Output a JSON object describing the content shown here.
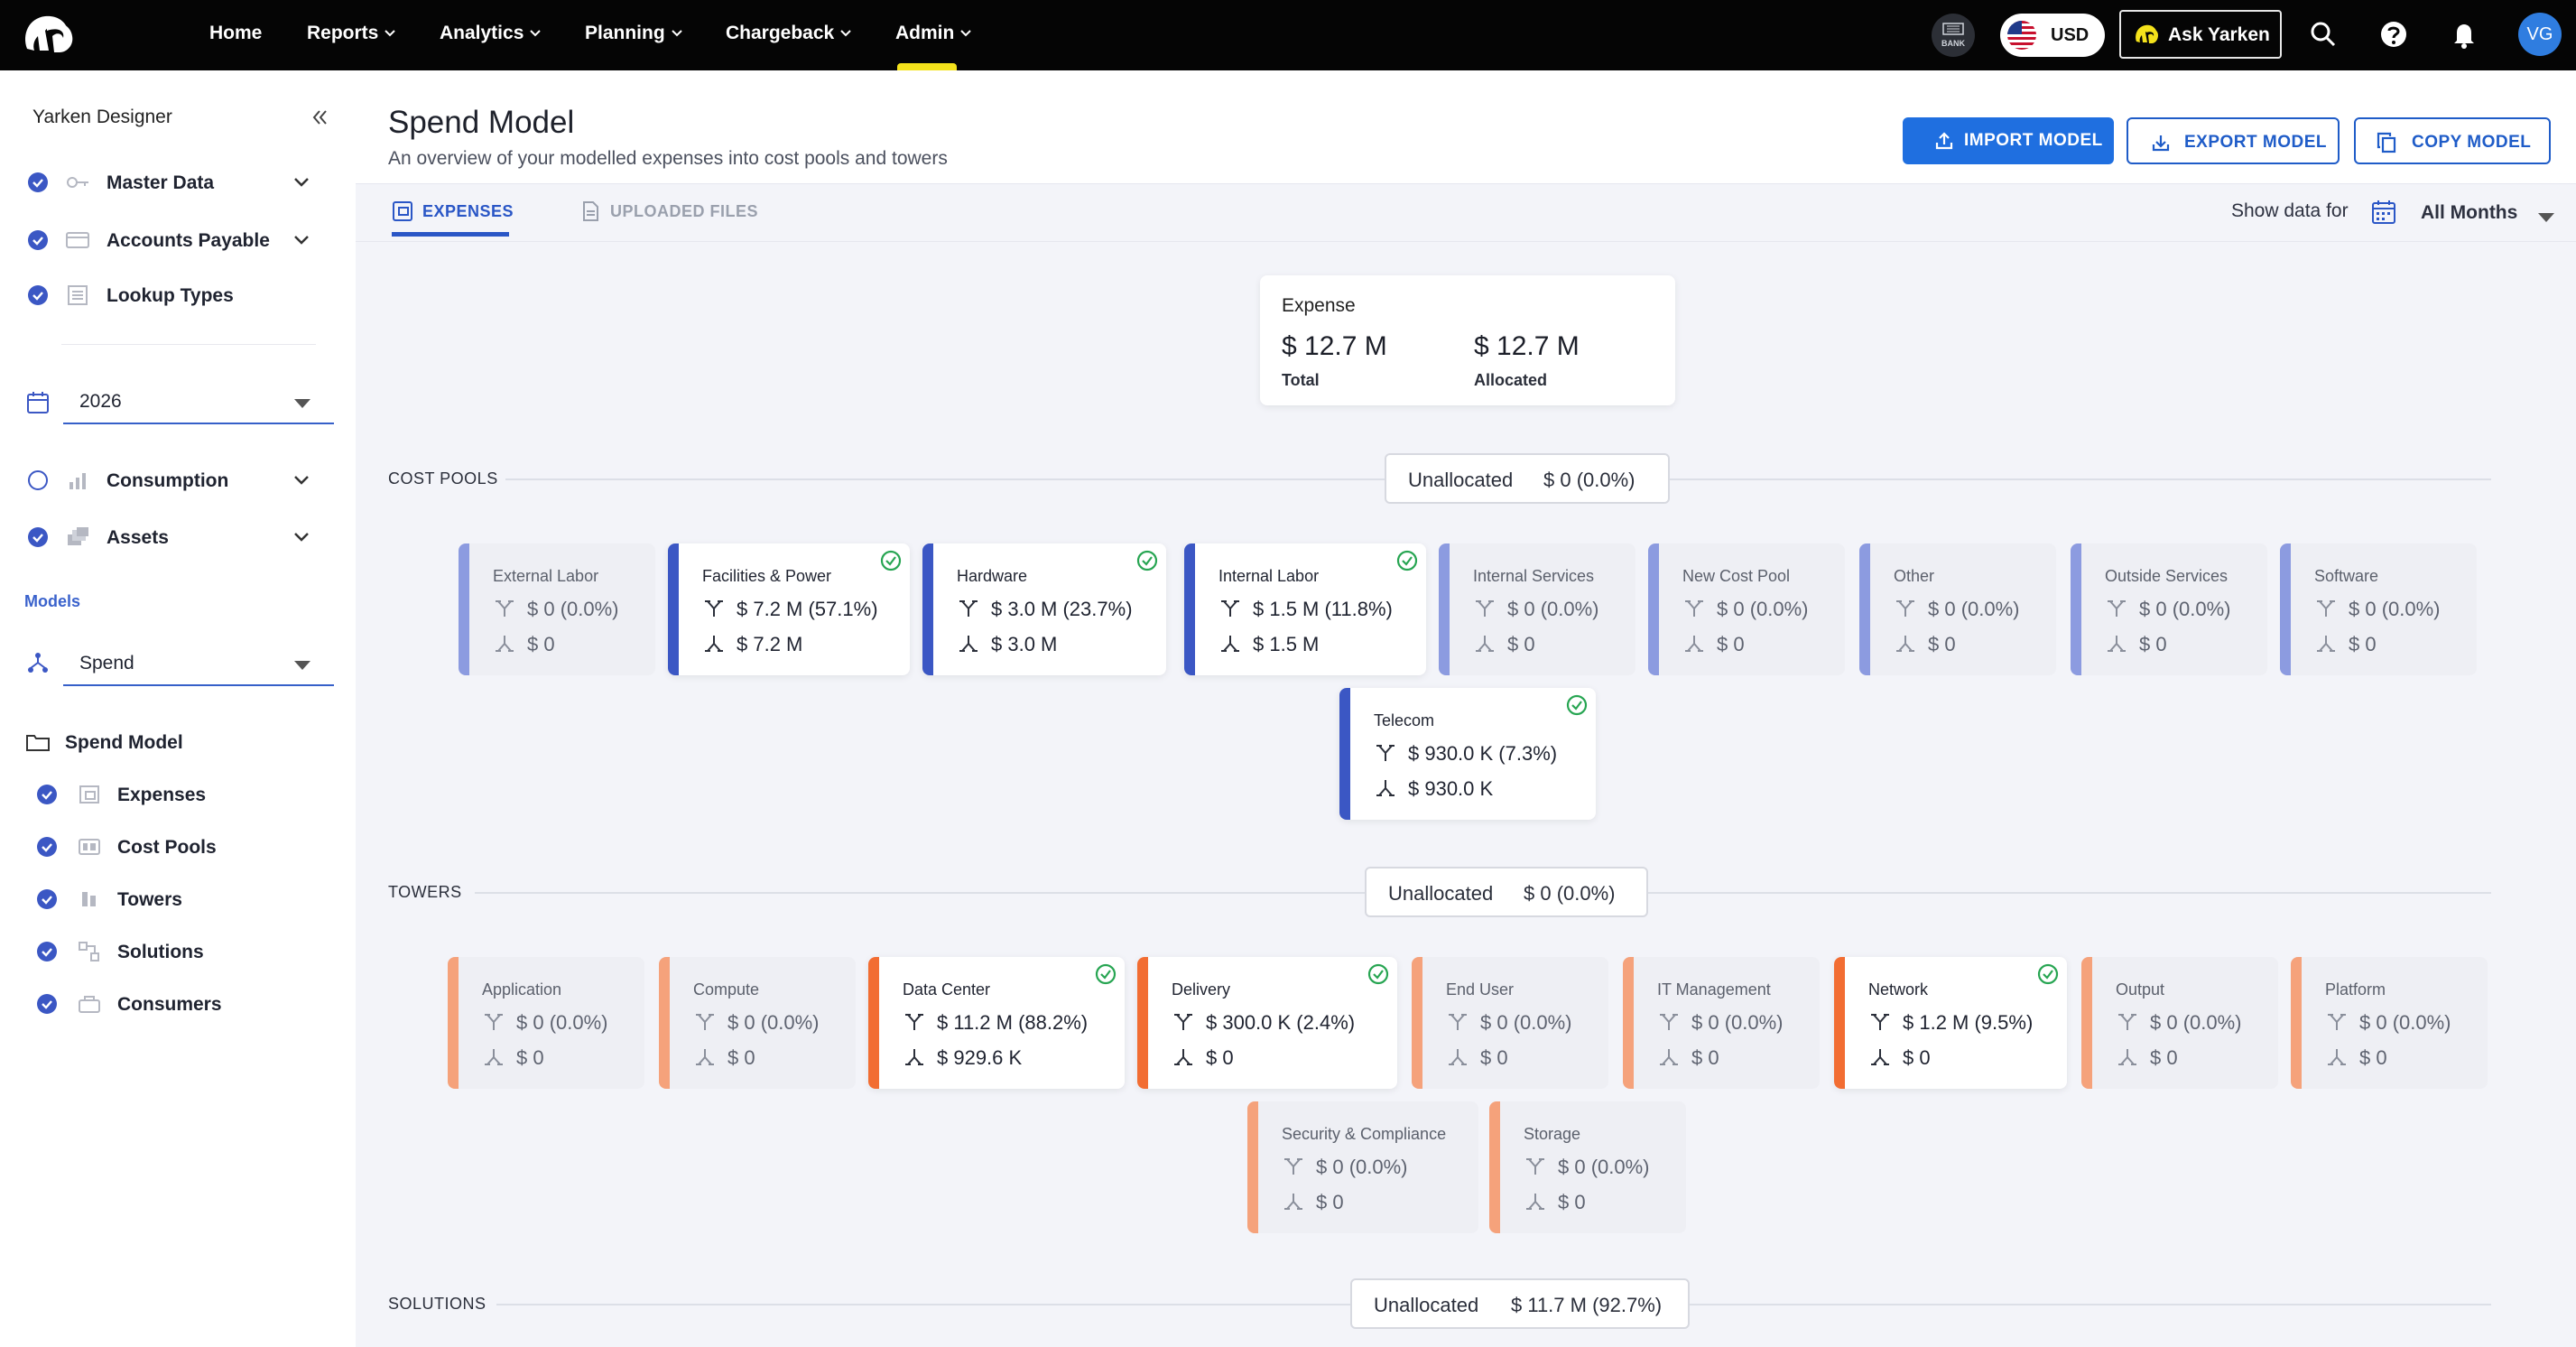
{
  "topnav": {
    "items": [
      {
        "label": "Home",
        "dropdown": false
      },
      {
        "label": "Reports",
        "dropdown": true
      },
      {
        "label": "Analytics",
        "dropdown": true
      },
      {
        "label": "Planning",
        "dropdown": true
      },
      {
        "label": "Chargeback",
        "dropdown": true
      },
      {
        "label": "Admin",
        "dropdown": true
      }
    ],
    "active": "Admin",
    "bank_label": "BANK",
    "currency": "USD",
    "ask_label": "Ask Yarken",
    "avatar_initials": "VG"
  },
  "sidebar": {
    "title": "Yarken Designer",
    "items": [
      {
        "label": "Master Data",
        "checked": true,
        "icon": "key-icon",
        "expandable": true
      },
      {
        "label": "Accounts Payable",
        "checked": true,
        "icon": "card-icon",
        "expandable": true
      },
      {
        "label": "Lookup Types",
        "checked": true,
        "icon": "list-icon",
        "expandable": false
      }
    ],
    "year": "2026",
    "items2": [
      {
        "label": "Consumption",
        "checked": false,
        "icon": "bar-chart-icon",
        "expandable": true
      },
      {
        "label": "Assets",
        "checked": true,
        "icon": "assets-icon",
        "expandable": true
      }
    ],
    "models_label": "Models",
    "model": "Spend",
    "folder": "Spend Model",
    "sub_items": [
      {
        "label": "Expenses",
        "checked": true,
        "icon": "expenses-icon"
      },
      {
        "label": "Cost Pools",
        "checked": true,
        "icon": "cost-pools-icon"
      },
      {
        "label": "Towers",
        "checked": true,
        "icon": "towers-icon"
      },
      {
        "label": "Solutions",
        "checked": true,
        "icon": "solutions-icon"
      },
      {
        "label": "Consumers",
        "checked": true,
        "icon": "consumers-icon"
      }
    ]
  },
  "header": {
    "title": "Spend Model",
    "subtitle": "An overview of your modelled expenses into cost pools and towers",
    "import_label": "IMPORT MODEL",
    "export_label": "EXPORT MODEL",
    "copy_label": "COPY MODEL"
  },
  "tabs": {
    "expenses": "EXPENSES",
    "uploaded": "UPLOADED FILES",
    "show_data_for": "Show data for",
    "period": "All Months"
  },
  "expense": {
    "title": "Expense",
    "total_value": "$ 12.7 M",
    "total_label": "Total",
    "allocated_value": "$ 12.7 M",
    "allocated_label": "Allocated"
  },
  "colors": {
    "cost_pool_active": "#3b57c4",
    "cost_pool_inactive": "#8c9be0",
    "tower_active": "#f26d32",
    "tower_inactive": "#f5a27b",
    "check": "#27a552",
    "primary": "#1f6fe0"
  },
  "cost_pools": {
    "label": "COST POOLS",
    "unallocated_label": "Unallocated",
    "unallocated_value": "$ 0 (0.0%)",
    "items": [
      {
        "name": "External Labor",
        "in": "$ 0 (0.0%)",
        "out": "$ 0",
        "active": false
      },
      {
        "name": "Facilities & Power",
        "in": "$ 7.2 M (57.1%)",
        "out": "$ 7.2 M",
        "active": true
      },
      {
        "name": "Hardware",
        "in": "$ 3.0 M (23.7%)",
        "out": "$ 3.0 M",
        "active": true
      },
      {
        "name": "Internal Labor",
        "in": "$ 1.5 M (11.8%)",
        "out": "$ 1.5 M",
        "active": true
      },
      {
        "name": "Internal Services",
        "in": "$ 0 (0.0%)",
        "out": "$ 0",
        "active": false
      },
      {
        "name": "New Cost Pool",
        "in": "$ 0 (0.0%)",
        "out": "$ 0",
        "active": false
      },
      {
        "name": "Other",
        "in": "$ 0 (0.0%)",
        "out": "$ 0",
        "active": false
      },
      {
        "name": "Outside Services",
        "in": "$ 0 (0.0%)",
        "out": "$ 0",
        "active": false
      },
      {
        "name": "Software",
        "in": "$ 0 (0.0%)",
        "out": "$ 0",
        "active": false
      },
      {
        "name": "Telecom",
        "in": "$ 930.0 K (7.3%)",
        "out": "$ 930.0 K",
        "active": true
      }
    ]
  },
  "towers": {
    "label": "TOWERS",
    "unallocated_label": "Unallocated",
    "unallocated_value": "$ 0 (0.0%)",
    "items": [
      {
        "name": "Application",
        "in": "$ 0 (0.0%)",
        "out": "$ 0",
        "active": false
      },
      {
        "name": "Compute",
        "in": "$ 0 (0.0%)",
        "out": "$ 0",
        "active": false
      },
      {
        "name": "Data Center",
        "in": "$ 11.2 M (88.2%)",
        "out": "$ 929.6 K",
        "active": true
      },
      {
        "name": "Delivery",
        "in": "$ 300.0 K (2.4%)",
        "out": "$ 0",
        "active": true
      },
      {
        "name": "End User",
        "in": "$ 0 (0.0%)",
        "out": "$ 0",
        "active": false
      },
      {
        "name": "IT Management",
        "in": "$ 0 (0.0%)",
        "out": "$ 0",
        "active": false
      },
      {
        "name": "Network",
        "in": "$ 1.2 M (9.5%)",
        "out": "$ 0",
        "active": true
      },
      {
        "name": "Output",
        "in": "$ 0 (0.0%)",
        "out": "$ 0",
        "active": false
      },
      {
        "name": "Platform",
        "in": "$ 0 (0.0%)",
        "out": "$ 0",
        "active": false
      },
      {
        "name": "Security & Compliance",
        "in": "$ 0 (0.0%)",
        "out": "$ 0",
        "active": false
      },
      {
        "name": "Storage",
        "in": "$ 0 (0.0%)",
        "out": "$ 0",
        "active": false
      }
    ]
  },
  "solutions": {
    "label": "SOLUTIONS",
    "unallocated_label": "Unallocated",
    "unallocated_value": "$ 11.7 M (92.7%)"
  }
}
